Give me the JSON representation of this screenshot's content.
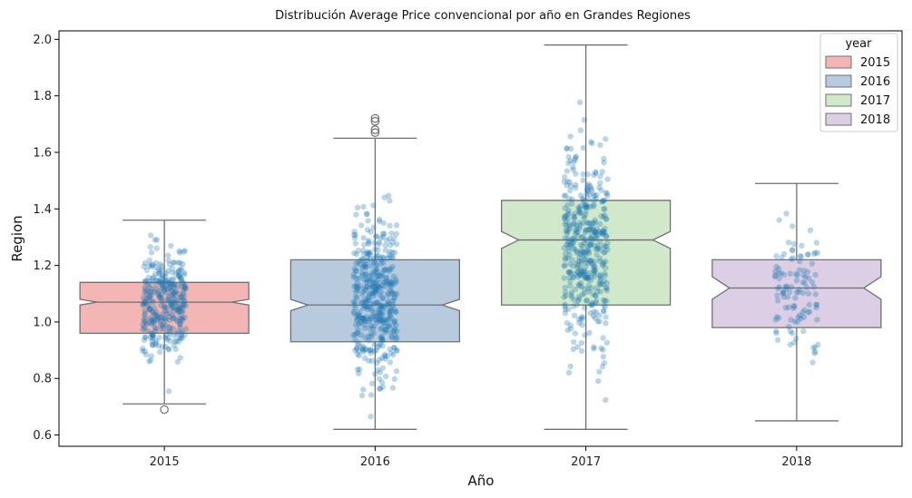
{
  "chart_data": {
    "type": "box",
    "title": "Distribución Average Price convencional por año en Grandes Regiones",
    "xlabel": "Año",
    "ylabel": "Region",
    "categories": [
      "2015",
      "2016",
      "2017",
      "2018"
    ],
    "ylim": [
      0.56,
      2.03
    ],
    "yticks": [
      "0.6",
      "0.8",
      "1.0",
      "1.2",
      "1.4",
      "1.6",
      "1.8",
      "2.0"
    ],
    "grid": false,
    "legend": {
      "title": "year",
      "placement": "top-right",
      "entries": [
        "2015",
        "2016",
        "2017",
        "2018"
      ]
    },
    "colors": {
      "2015": "#f3b6b4",
      "2016": "#b7cade",
      "2017": "#d1e8cb",
      "2018": "#dccee4",
      "box_edge": "#707070",
      "points": "#1f77b4"
    },
    "boxes": [
      {
        "category": "2015",
        "whisker_low": 0.71,
        "q1": 0.96,
        "median": 1.07,
        "q3": 1.14,
        "whisker_high": 1.36,
        "notch_low": 1.06,
        "notch_high": 1.08,
        "outliers": [
          0.69
        ],
        "n_points": 340,
        "point_center": 1.06,
        "point_spread": 0.12
      },
      {
        "category": "2016",
        "whisker_low": 0.62,
        "q1": 0.93,
        "median": 1.06,
        "q3": 1.22,
        "whisker_high": 1.65,
        "notch_low": 1.04,
        "notch_high": 1.08,
        "outliers": [
          1.67,
          1.68,
          1.71,
          1.72
        ],
        "n_points": 430,
        "point_center": 1.08,
        "point_spread": 0.2
      },
      {
        "category": "2017",
        "whisker_low": 0.62,
        "q1": 1.06,
        "median": 1.29,
        "q3": 1.43,
        "whisker_high": 1.98,
        "notch_low": 1.26,
        "notch_high": 1.32,
        "outliers": [],
        "n_points": 430,
        "point_center": 1.27,
        "point_spread": 0.26
      },
      {
        "category": "2018",
        "whisker_low": 0.65,
        "q1": 0.98,
        "median": 1.12,
        "q3": 1.22,
        "whisker_high": 1.49,
        "notch_low": 1.08,
        "notch_high": 1.16,
        "outliers": [],
        "n_points": 110,
        "point_center": 1.1,
        "point_spread": 0.16
      }
    ]
  }
}
